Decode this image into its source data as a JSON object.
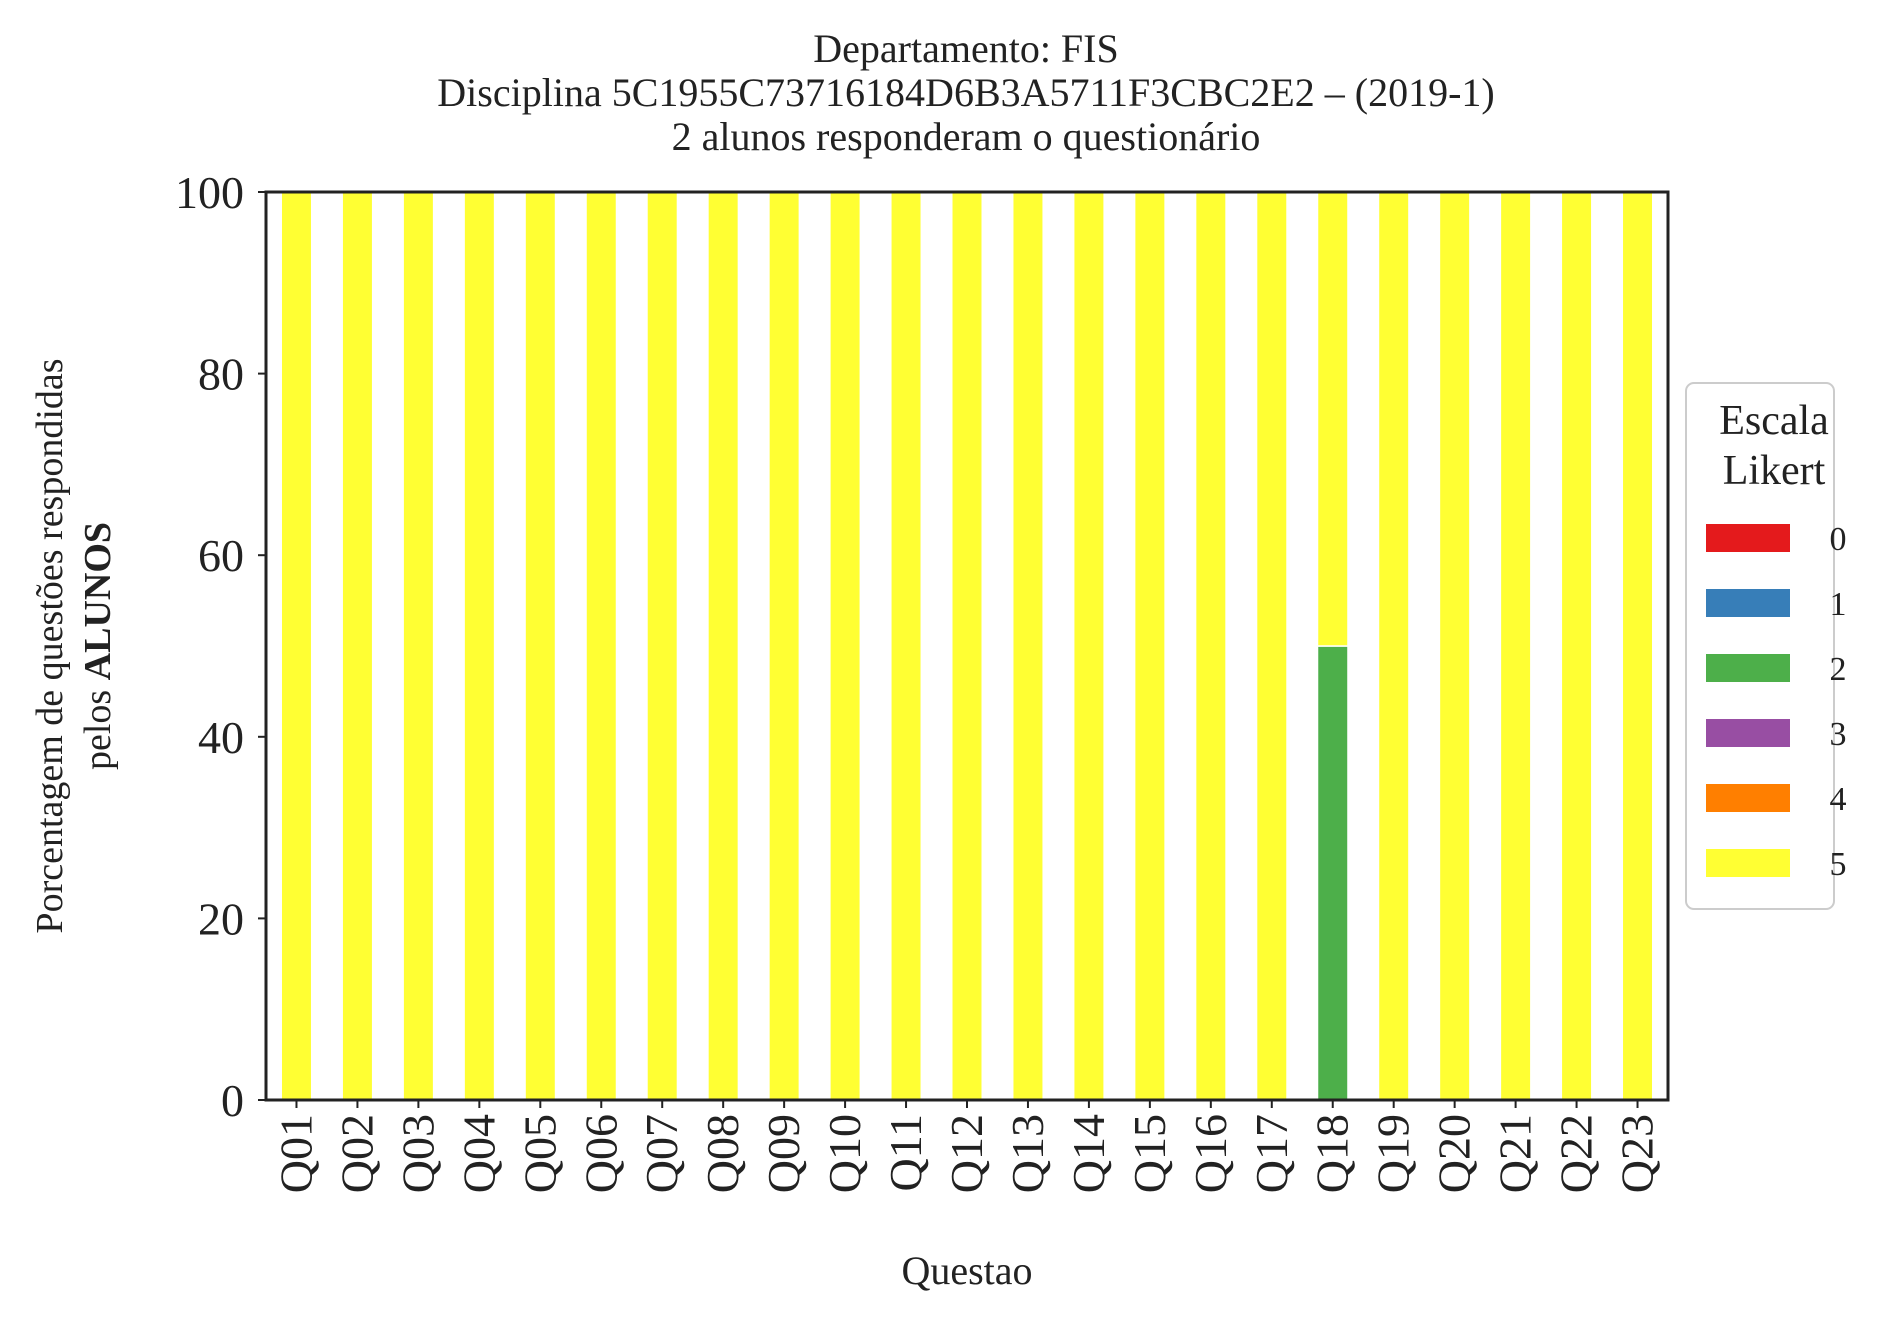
{
  "chart_data": {
    "type": "bar",
    "stacked": true,
    "title_lines": [
      "Departamento: FIS",
      "Disciplina 5C1955C73716184D6B3A5711F3CBC2E2 – (2019-1)",
      "2 alunos responderam o questionário"
    ],
    "xlabel": "Questao",
    "ylabel_line1": "Porcentagem de questões respondidas",
    "ylabel_line2_prefix": "pelos ",
    "ylabel_line2_bold": "ALUNOS",
    "ylim": [
      0,
      100
    ],
    "yticks": [
      0,
      20,
      40,
      60,
      80,
      100
    ],
    "grid": false,
    "legend": {
      "title_lines": [
        "Escala",
        "Likert"
      ],
      "placement": "right-center"
    },
    "categories": [
      "Q01",
      "Q02",
      "Q03",
      "Q04",
      "Q05",
      "Q06",
      "Q07",
      "Q08",
      "Q09",
      "Q10",
      "Q11",
      "Q12",
      "Q13",
      "Q14",
      "Q15",
      "Q16",
      "Q17",
      "Q18",
      "Q19",
      "Q20",
      "Q21",
      "Q22",
      "Q23"
    ],
    "series": [
      {
        "name": "0",
        "color": "#e41a1c",
        "values": [
          0,
          0,
          0,
          0,
          0,
          0,
          0,
          0,
          0,
          0,
          0,
          0,
          0,
          0,
          0,
          0,
          0,
          0,
          0,
          0,
          0,
          0,
          0
        ]
      },
      {
        "name": "1",
        "color": "#377eb8",
        "values": [
          0,
          0,
          0,
          0,
          0,
          0,
          0,
          0,
          0,
          0,
          0,
          0,
          0,
          0,
          0,
          0,
          0,
          0,
          0,
          0,
          0,
          0,
          0
        ]
      },
      {
        "name": "2",
        "color": "#4daf4a",
        "values": [
          0,
          0,
          0,
          0,
          0,
          0,
          0,
          0,
          0,
          0,
          0,
          0,
          0,
          0,
          0,
          0,
          0,
          50,
          0,
          0,
          0,
          0,
          0
        ]
      },
      {
        "name": "3",
        "color": "#984ea3",
        "values": [
          0,
          0,
          0,
          0,
          0,
          0,
          0,
          0,
          0,
          0,
          0,
          0,
          0,
          0,
          0,
          0,
          0,
          0,
          0,
          0,
          0,
          0,
          0
        ]
      },
      {
        "name": "4",
        "color": "#ff7f00",
        "values": [
          0,
          0,
          0,
          0,
          0,
          0,
          0,
          0,
          0,
          0,
          0,
          0,
          0,
          0,
          0,
          0,
          0,
          0,
          0,
          0,
          0,
          0,
          0
        ]
      },
      {
        "name": "5",
        "color": "#ffff33",
        "values": [
          100,
          100,
          100,
          100,
          100,
          100,
          100,
          100,
          100,
          100,
          100,
          100,
          100,
          100,
          100,
          100,
          100,
          50,
          100,
          100,
          100,
          100,
          100
        ]
      }
    ]
  }
}
